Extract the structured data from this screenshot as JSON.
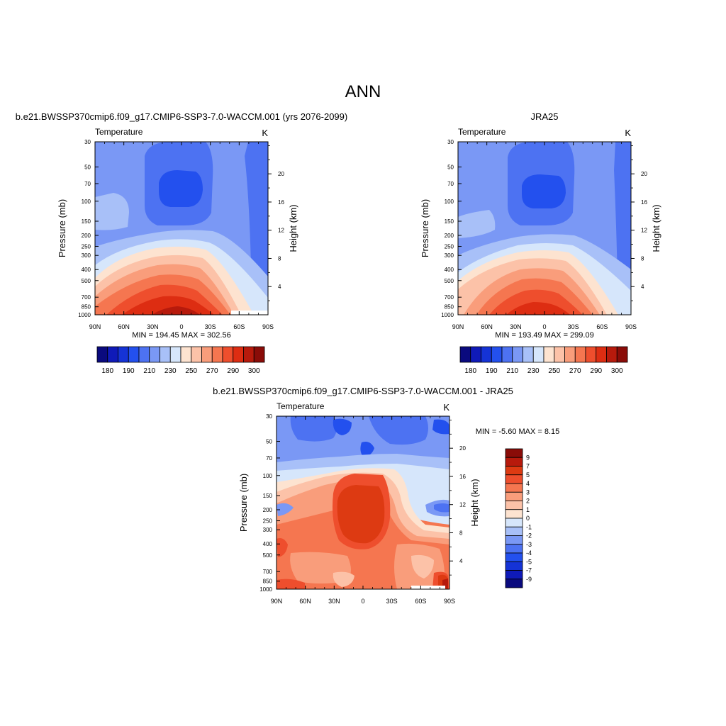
{
  "figure": {
    "title": "ANN"
  },
  "colors": {
    "abs_palette": [
      "#0a0a7e",
      "#0f1ab8",
      "#1533d6",
      "#2350ee",
      "#4d72f2",
      "#7a98f5",
      "#a8c0f8",
      "#d6e6fb",
      "#fde3d0",
      "#fcc2a8",
      "#f99d7b",
      "#f57650",
      "#ee4e2d",
      "#dd2d12",
      "#b71a0c",
      "#8a0c08"
    ],
    "diff_palette": [
      "#0a0a7e",
      "#0f1ab8",
      "#1533d6",
      "#2350ee",
      "#4d72f2",
      "#7a98f5",
      "#a8c0f8",
      "#d6e6fb",
      "#fde3d0",
      "#fcc2a8",
      "#f99d7b",
      "#f57650",
      "#ee4e2d",
      "#dd3a12",
      "#b71a0c",
      "#8a0c08"
    ]
  },
  "chart_data": [
    {
      "type": "heatmap",
      "title": "b.e21.BWSSP370cmip6.f09_g17.CMIP6-SSP3-7.0-WACCM.001 (yrs 2076-2099)",
      "left_label": "Temperature",
      "right_label": "K",
      "xlabel": "",
      "ylabel": "Pressure (mb)",
      "ylabel_right": "Height (km)",
      "x_ticks": [
        "90N",
        "60N",
        "30N",
        "0",
        "30S",
        "60S",
        "90S"
      ],
      "y_ticks": [
        30,
        50,
        70,
        100,
        150,
        200,
        250,
        300,
        400,
        500,
        700,
        850,
        1000
      ],
      "y_right_ticks": [
        20,
        16,
        12,
        8,
        4
      ],
      "xlim": [
        90,
        -90
      ],
      "ylim": [
        1000,
        30
      ],
      "y_scale": "log",
      "stats_text": "MIN = 194.45  MAX = 302.56",
      "min": 194.45,
      "max": 302.56,
      "colorbar_labels": [
        "180",
        "190",
        "210",
        "230",
        "250",
        "270",
        "290",
        "300"
      ],
      "colorbar_orientation": "horizontal"
    },
    {
      "type": "heatmap",
      "title": "JRA25",
      "left_label": "Temperature",
      "right_label": "K",
      "xlabel": "",
      "ylabel": "Pressure (mb)",
      "ylabel_right": "Height (km)",
      "x_ticks": [
        "90N",
        "60N",
        "30N",
        "0",
        "30S",
        "60S",
        "90S"
      ],
      "y_ticks": [
        30,
        50,
        70,
        100,
        150,
        200,
        250,
        300,
        400,
        500,
        700,
        850,
        1000
      ],
      "y_right_ticks": [
        20,
        16,
        12,
        8,
        4
      ],
      "xlim": [
        90,
        -90
      ],
      "ylim": [
        1000,
        30
      ],
      "y_scale": "log",
      "stats_text": "MIN = 193.49  MAX = 299.09",
      "min": 193.49,
      "max": 299.09,
      "colorbar_labels": [
        "180",
        "190",
        "210",
        "230",
        "250",
        "270",
        "290",
        "300"
      ],
      "colorbar_orientation": "horizontal"
    },
    {
      "type": "heatmap",
      "title": "b.e21.BWSSP370cmip6.f09_g17.CMIP6-SSP3-7.0-WACCM.001 - JRA25",
      "left_label": "Temperature",
      "right_label": "K",
      "xlabel": "",
      "ylabel": "Pressure (mb)",
      "ylabel_right": "Height (km)",
      "x_ticks": [
        "90N",
        "60N",
        "30N",
        "0",
        "30S",
        "60S",
        "90S"
      ],
      "y_ticks": [
        30,
        50,
        70,
        100,
        150,
        200,
        250,
        300,
        400,
        500,
        700,
        850,
        1000
      ],
      "y_right_ticks": [
        20,
        16,
        12,
        8,
        4
      ],
      "xlim": [
        90,
        -90
      ],
      "ylim": [
        1000,
        30
      ],
      "y_scale": "log",
      "stats_text": "MIN =  -5.60  MAX =   8.15",
      "min": -5.6,
      "max": 8.15,
      "colorbar_labels": [
        "9",
        "7",
        "5",
        "4",
        "3",
        "2",
        "1",
        "0",
        "-1",
        "-2",
        "-3",
        "-4",
        "-5",
        "-7",
        "-9"
      ],
      "colorbar_orientation": "vertical"
    }
  ]
}
